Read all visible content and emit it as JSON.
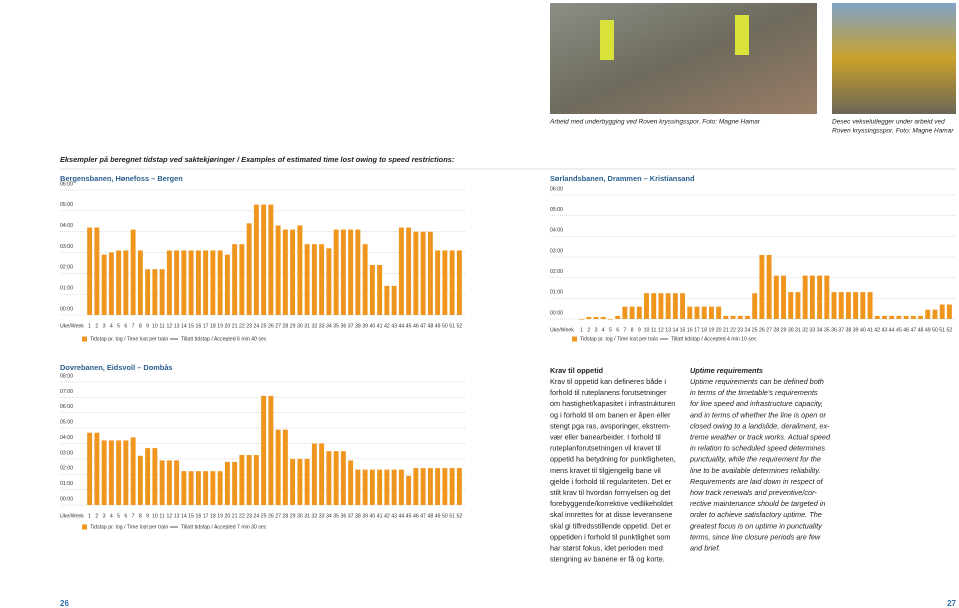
{
  "captions": [
    [
      "Arbeid med underbygging ved Roven kryssingsspor. Foto: Magne Hamar"
    ],
    [
      "Desec vekselutlegger under arbeid ved",
      "Roven kryssingsspor. Foto: Magne Hamar"
    ]
  ],
  "heading": "Eksempler på beregnet tidstap ved saktekjøringer / Examples of estimated time lost owing to speed restrictions:",
  "chart_data": [
    {
      "type": "bar",
      "title": "Bergensbanen, Hønefoss – Bergen",
      "x_label": "Uke/Week",
      "categories": [
        "1",
        "2",
        "3",
        "4",
        "5",
        "6",
        "7",
        "8",
        "9",
        "10",
        "11",
        "12",
        "13",
        "14",
        "15",
        "16",
        "17",
        "18",
        "19",
        "20",
        "21",
        "22",
        "23",
        "24",
        "25",
        "26",
        "27",
        "28",
        "29",
        "30",
        "31",
        "32",
        "33",
        "34",
        "35",
        "36",
        "37",
        "38",
        "39",
        "40",
        "41",
        "42",
        "43",
        "44",
        "45",
        "46",
        "47",
        "48",
        "49",
        "50",
        "51",
        "52"
      ],
      "series": [
        {
          "name": "Tidstap pr. tog / Time lost per train",
          "color": "#f0961e",
          "values": [
            4.2,
            4.2,
            2.9,
            3.0,
            3.1,
            3.1,
            4.1,
            3.1,
            2.2,
            2.2,
            2.2,
            3.1,
            3.1,
            3.1,
            3.1,
            3.1,
            3.1,
            3.1,
            3.1,
            2.9,
            3.4,
            3.4,
            4.4,
            5.3,
            5.3,
            5.3,
            4.3,
            4.1,
            4.1,
            4.3,
            3.4,
            3.4,
            3.4,
            3.2,
            4.1,
            4.1,
            4.1,
            4.1,
            3.4,
            2.4,
            2.4,
            1.4,
            1.4,
            4.2,
            4.2,
            4.0,
            4.0,
            4.0,
            3.1,
            3.1,
            3.1,
            3.1
          ]
        }
      ],
      "accepted_label": "Tillatt tidstap / Accepted 6 min 40 sec",
      "ylim": [
        0,
        6
      ],
      "yticks": [
        {
          "value": 0,
          "label": "00:00"
        },
        {
          "value": 1,
          "label": "01:00"
        },
        {
          "value": 2,
          "label": "02:00"
        },
        {
          "value": 3,
          "label": "03:00"
        },
        {
          "value": 4,
          "label": "04:00"
        },
        {
          "value": 5,
          "label": "05:00"
        },
        {
          "value": 6,
          "label": "06:00"
        }
      ],
      "grid": true
    },
    {
      "type": "bar",
      "title": "Sørlandsbanen, Drammen – Kristiansand",
      "x_label": "Uke/Week",
      "categories": [
        "1",
        "2",
        "3",
        "4",
        "5",
        "6",
        "7",
        "8",
        "9",
        "10",
        "11",
        "12",
        "13",
        "14",
        "15",
        "16",
        "17",
        "18",
        "19",
        "20",
        "21",
        "22",
        "23",
        "24",
        "25",
        "26",
        "27",
        "28",
        "29",
        "30",
        "31",
        "32",
        "33",
        "34",
        "35",
        "36",
        "37",
        "38",
        "39",
        "40",
        "41",
        "42",
        "43",
        "44",
        "45",
        "46",
        "47",
        "48",
        "49",
        "50",
        "51",
        "52"
      ],
      "series": [
        {
          "name": "Tidstap pr. tog / Time lost per train",
          "color": "#f0961e",
          "values": [
            0,
            0.1,
            0.1,
            0.1,
            0,
            0.15,
            0.6,
            0.6,
            0.6,
            1.25,
            1.25,
            1.25,
            1.25,
            1.25,
            1.25,
            0.6,
            0.6,
            0.6,
            0.6,
            0.6,
            0.15,
            0.15,
            0.15,
            0.15,
            1.25,
            3.1,
            3.1,
            2.1,
            2.1,
            1.3,
            1.3,
            2.1,
            2.1,
            2.1,
            2.1,
            1.3,
            1.3,
            1.3,
            1.3,
            1.3,
            1.3,
            0.15,
            0.15,
            0.15,
            0.15,
            0.15,
            0.15,
            0.15,
            0.45,
            0.45,
            0.7,
            0.7
          ]
        }
      ],
      "accepted_label": "Tillatt tidstap / Accepted 4 min 10 sec",
      "ylim": [
        0,
        6
      ],
      "yticks": [
        {
          "value": 0,
          "label": "00:00"
        },
        {
          "value": 1,
          "label": "01:00"
        },
        {
          "value": 2,
          "label": "02:00"
        },
        {
          "value": 3,
          "label": "03:00"
        },
        {
          "value": 4,
          "label": "04:00"
        },
        {
          "value": 5,
          "label": "05:00"
        },
        {
          "value": 6,
          "label": "06:00"
        }
      ],
      "grid": true
    },
    {
      "type": "bar",
      "title": "Dovrebanen, Eidsvoll – Dombås",
      "x_label": "Uke/Week",
      "categories": [
        "1",
        "2",
        "3",
        "4",
        "5",
        "6",
        "7",
        "8",
        "9",
        "10",
        "11",
        "12",
        "13",
        "14",
        "15",
        "16",
        "17",
        "18",
        "19",
        "20",
        "21",
        "22",
        "23",
        "24",
        "25",
        "26",
        "27",
        "28",
        "29",
        "30",
        "31",
        "32",
        "33",
        "34",
        "35",
        "36",
        "37",
        "38",
        "39",
        "40",
        "41",
        "42",
        "43",
        "44",
        "45",
        "46",
        "47",
        "48",
        "49",
        "50",
        "51",
        "52"
      ],
      "series": [
        {
          "name": "Tidstap pr. tog / Time lost per train",
          "color": "#f0961e",
          "values": [
            4.7,
            4.7,
            4.2,
            4.2,
            4.2,
            4.2,
            4.4,
            3.2,
            3.7,
            3.7,
            2.9,
            2.9,
            2.9,
            2.2,
            2.2,
            2.2,
            2.2,
            2.2,
            2.2,
            2.8,
            2.8,
            3.25,
            3.25,
            3.25,
            7.1,
            7.1,
            4.9,
            4.9,
            3.0,
            3.0,
            3.0,
            4.0,
            4.0,
            3.5,
            3.5,
            3.5,
            2.9,
            2.3,
            2.3,
            2.3,
            2.3,
            2.3,
            2.3,
            2.3,
            1.9,
            2.4,
            2.4,
            2.4,
            2.4,
            2.4,
            2.4,
            2.4
          ]
        }
      ],
      "accepted_label": "Tillatt tidstap / Accepted 7 min 30 sec",
      "ylim": [
        0,
        8
      ],
      "yticks": [
        {
          "value": 0,
          "label": "00:00"
        },
        {
          "value": 1,
          "label": "01:00"
        },
        {
          "value": 2,
          "label": "02:00"
        },
        {
          "value": 3,
          "label": "03:00"
        },
        {
          "value": 4,
          "label": "04:00"
        },
        {
          "value": 5,
          "label": "05:00"
        },
        {
          "value": 6,
          "label": "06:00"
        },
        {
          "value": 7,
          "label": "07:00"
        },
        {
          "value": 8,
          "label": "08:00"
        }
      ],
      "grid": true
    }
  ],
  "columns": [
    {
      "title": "Krav til oppetid",
      "lines": [
        "Krav til oppetid kan defineres både i",
        "forhold til ruteplanens forutsetninger",
        "om hastighet/kapasitet i infrastrukturen",
        "og i forhold til om banen er åpen eller",
        "stengt pga ras, avsporinger, ekstrem-",
        "vær eller banearbeider. I forhold til",
        "ruteplanforutsetningen vil kravet til",
        "oppetid ha betydning for punktligheten,",
        "mens kravet til tilgjengelig bane vil",
        "gjelde i forhold til regulariteten. Det er",
        "stilt krav til hvordan fornyelsen og det",
        "forebyggende/korrektive vedlikeholdet",
        "skal innrettes for at disse leveransene",
        "skal gi tilfredsstillende oppetid.  Det er",
        "oppetiden i forhold til punktlighet som",
        "har størst fokus, idet perioden med",
        "stengning av banene er få og korte."
      ]
    },
    {
      "title": "Uptime requirements",
      "lines": [
        "Uptime requirements can be defined both",
        "in terms of the timetable’s requirements",
        "for line speed and infrastructure capacity,",
        "and in terms of whether the line is open or",
        "closed owing to a landslide, derailment, ex-",
        "treme weather or track works. Actual speed",
        "in relation to scheduled speed determines",
        "punctuality, while the requirement for the",
        "line to be available determines reliability.",
        "Requirements are laid down in respect of",
        "how track renewals and preventive/cor-",
        "rective maintenance should be targeted in",
        "order to achieve satisfactory uptime. The",
        "greatest focus is on uptime in punctuality",
        "terms, since line closure periods are few",
        "and brief."
      ]
    }
  ],
  "page_numbers": [
    "26",
    "27"
  ]
}
